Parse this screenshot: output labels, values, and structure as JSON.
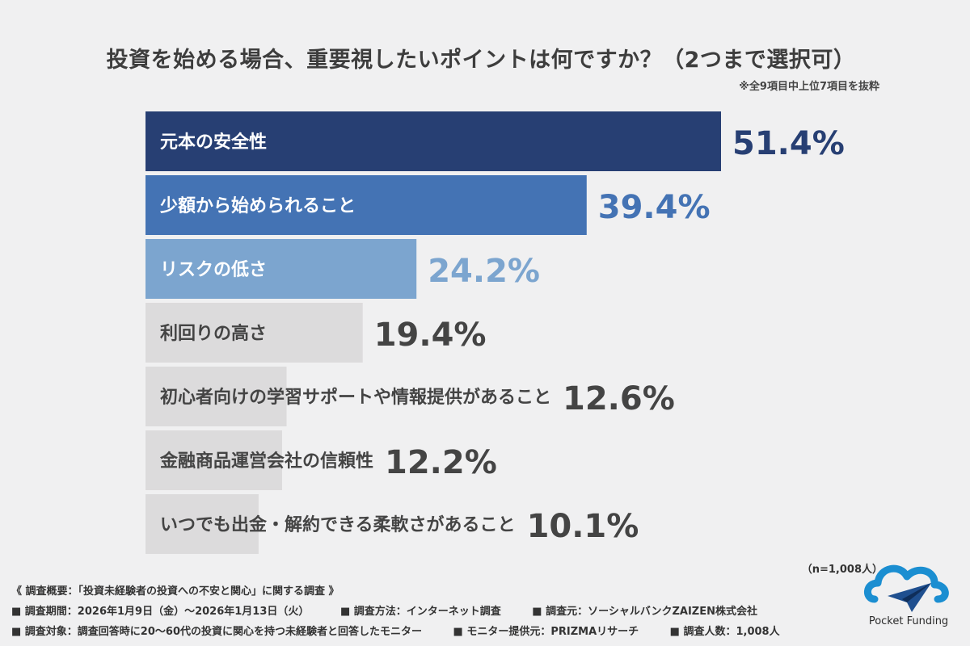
{
  "title": "投資を始める場合、重要視したいポイントは何ですか？（2つまで選択可）",
  "subnote": "※全9項目中上位7項目を抜粋",
  "sample_note": "（n=1,008人）",
  "footer": {
    "heading": "《 調査概要：「投資未経験者の投資への不安と関心」に関する調査 》",
    "row1": [
      "■ 調査期間：2026年1月9日（金）〜2026年1月13日（火）",
      "■ 調査方法：インターネット調査",
      "■ 調査元：ソーシャルバンクZAIZEN株式会社"
    ],
    "row2": [
      "■ 調査対象：調査回答時に20〜60代の投資に関心を持つ未経験者と回答したモニター",
      "■ モニター提供元：PRIZMAリサーチ",
      "■ 調査人数：1,008人"
    ]
  },
  "logo": {
    "text": "Pocket Funding"
  },
  "colors": {
    "bar1": "#273f73",
    "bar2": "#4473b4",
    "bar3": "#7ca5cf",
    "bar_rest": "#dcdbdc",
    "bg": "#f0f0f1"
  },
  "chart_data": {
    "type": "bar",
    "orientation": "horizontal",
    "title": "投資を始める場合、重要視したいポイントは何ですか？（2つまで選択可）",
    "xlim": [
      0,
      100
    ],
    "grid": false,
    "categories": [
      "元本の安全性",
      "少額から始められること",
      "リスクの低さ",
      "利回りの高さ",
      "初心者向けの学習サポートや情報提供があること",
      "金融商品運営会社の信頼性",
      "いつでも出金・解約できる柔軟さがあること"
    ],
    "values": [
      51.4,
      39.4,
      24.2,
      19.4,
      12.6,
      12.2,
      10.1
    ],
    "value_labels": [
      "51.4%",
      "39.4%",
      "24.2%",
      "19.4%",
      "12.6%",
      "12.2%",
      "10.1%"
    ],
    "bar_colors": [
      "#273f73",
      "#4473b4",
      "#7ca5cf",
      "#dcdbdc",
      "#dcdbdc",
      "#dcdbdc",
      "#dcdbdc"
    ],
    "label_colors": [
      "#ffffff",
      "#ffffff",
      "#ffffff",
      "#444444",
      "#444444",
      "#444444",
      "#444444"
    ],
    "value_colors": [
      "#273f73",
      "#4473b4",
      "#7ca5cf",
      "#444444",
      "#444444",
      "#444444",
      "#444444"
    ]
  }
}
